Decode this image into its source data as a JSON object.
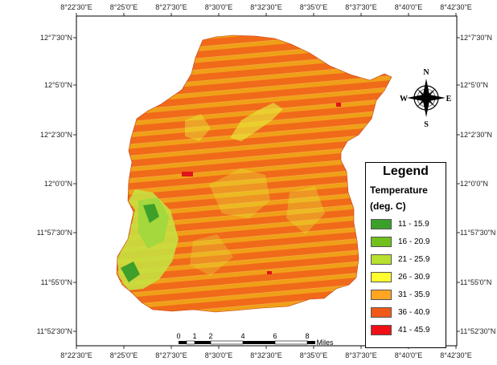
{
  "map": {
    "lon_ticks": [
      "8°22'30\"E",
      "8°25'0\"E",
      "8°27'30\"E",
      "8°30'0\"E",
      "8°32'30\"E",
      "8°35'0\"E",
      "8°37'30\"E",
      "8°40'0\"E",
      "8°42'30\"E"
    ],
    "lat_ticks": [
      "12°7'30\"N",
      "12°5'0\"N",
      "12°2'30\"N",
      "12°0'0\"N",
      "11°57'30\"N",
      "11°55'0\"N",
      "11°52'30\"N"
    ],
    "colors": {
      "base": "#f06a1a",
      "stripe": "#f0a018",
      "yellow_patch": "#e8e83a",
      "green_light": "#c8e040",
      "green_mid": "#8ccc34",
      "green_dark": "#3ea02a",
      "red": "#e0141c"
    }
  },
  "legend": {
    "title": "Legend",
    "subtitle_line1": "Temperature",
    "subtitle_line2": "(deg. C)",
    "items": [
      {
        "label": "11 - 15.9",
        "color": "#3aa02a"
      },
      {
        "label": "16 - 20.9",
        "color": "#72c01c"
      },
      {
        "label": "21 - 25.9",
        "color": "#b8e030"
      },
      {
        "label": "26 - 30.9",
        "color": "#ffff30"
      },
      {
        "label": "31 - 35.9",
        "color": "#ffa522"
      },
      {
        "label": "36 - 40.9",
        "color": "#f05a18"
      },
      {
        "label": "41 - 45.9",
        "color": "#ee1016"
      }
    ]
  },
  "compass": {
    "n": "N",
    "s": "S",
    "e": "E",
    "w": "W"
  },
  "scale_bar": {
    "ticks": [
      "0",
      "1",
      "2",
      "4",
      "6",
      "8"
    ],
    "unit": "Miles"
  }
}
